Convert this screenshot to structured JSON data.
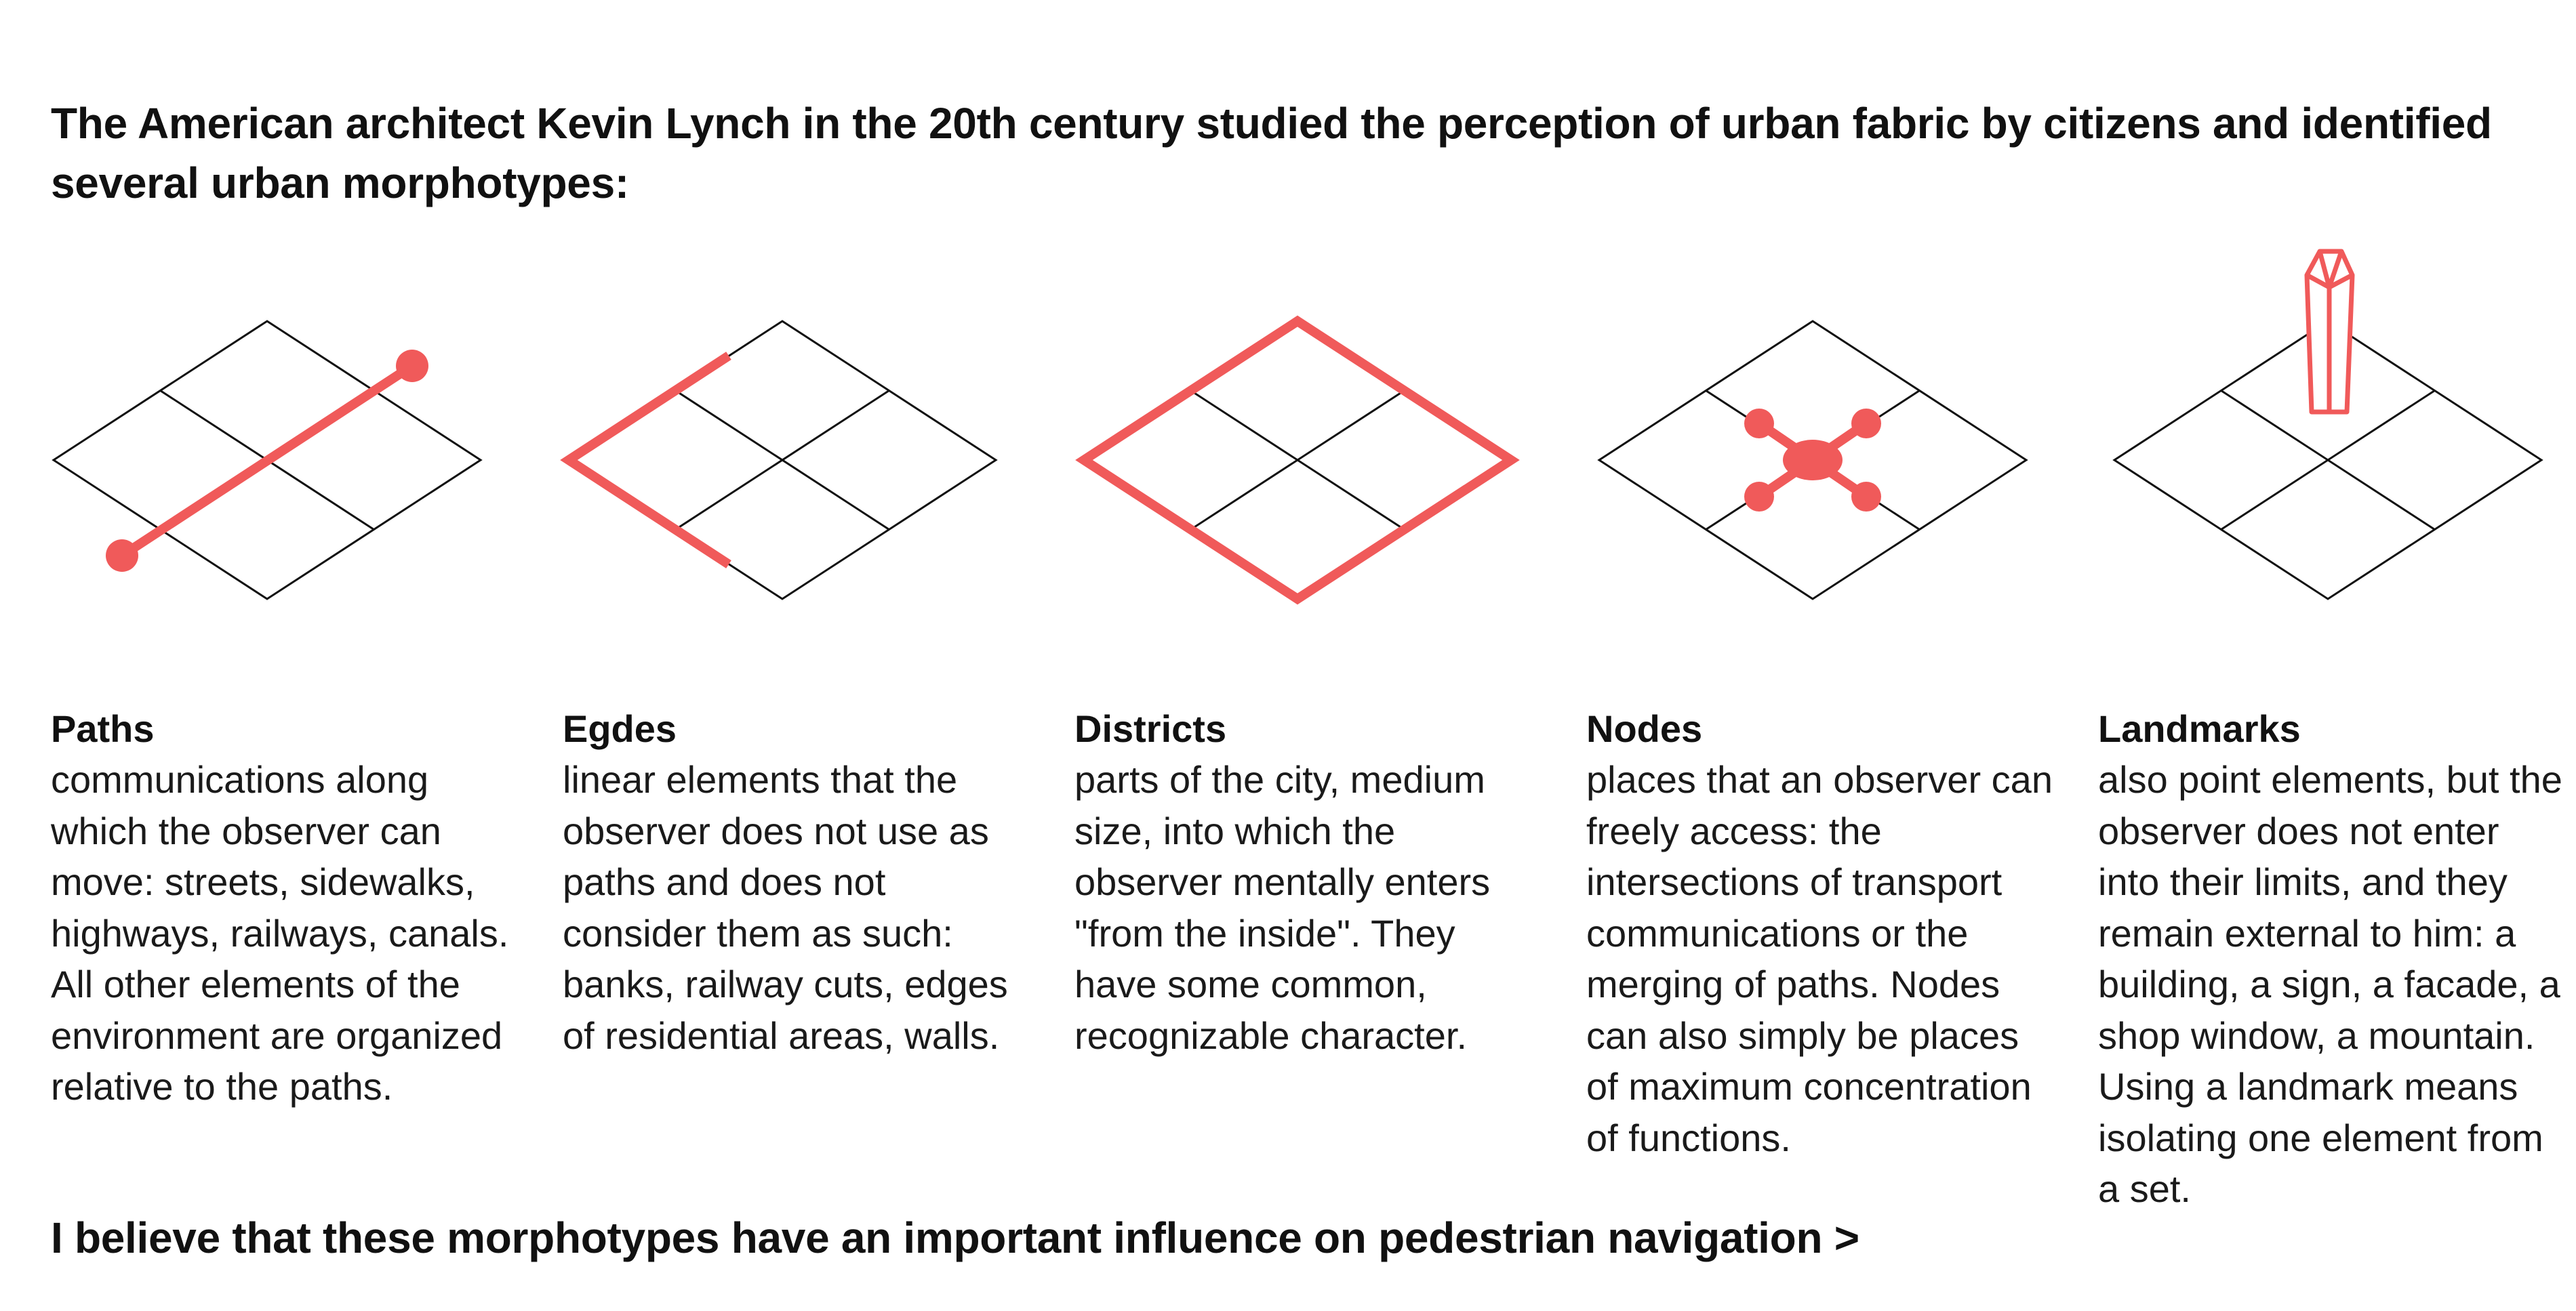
{
  "headline": "The American architect Kevin Lynch in the 20th century studied the perception of urban fabric by citizens and identified several urban morphotypes:",
  "accent_color": "#f05a5a",
  "morphotypes": [
    {
      "title": "Paths",
      "description": "communications along which the observer can move: streets, sidewalks, highways, railways, canals. All other elements of the environment are organized relative to the paths.",
      "icon": "paths-diagram-icon"
    },
    {
      "title": "Egdes",
      "description": "linear elements that the observer does not use as paths and does not consider them as such: banks, railway cuts, edges of residential areas, walls.",
      "icon": "edges-diagram-icon"
    },
    {
      "title": "Districts",
      "description": "parts of the city, medium size, into which the observer mentally enters \"from the inside\". They have some common, recognizable character.",
      "icon": "districts-diagram-icon"
    },
    {
      "title": "Nodes",
      "description": "places that an observer can freely access: the intersections of transport communications or the merging of paths. Nodes can also simply be places of maximum concentration of functions.",
      "icon": "nodes-diagram-icon"
    },
    {
      "title": "Landmarks",
      "description": "also point elements, but the observer does not enter into their limits, and they remain external to him: a building, a sign, a facade, a shop window, a mountain. Using a landmark means isolating one element from a set.",
      "icon": "landmarks-diagram-icon"
    }
  ],
  "footer": "I believe that these morphotypes have an important influence on pedestrian navigation >"
}
